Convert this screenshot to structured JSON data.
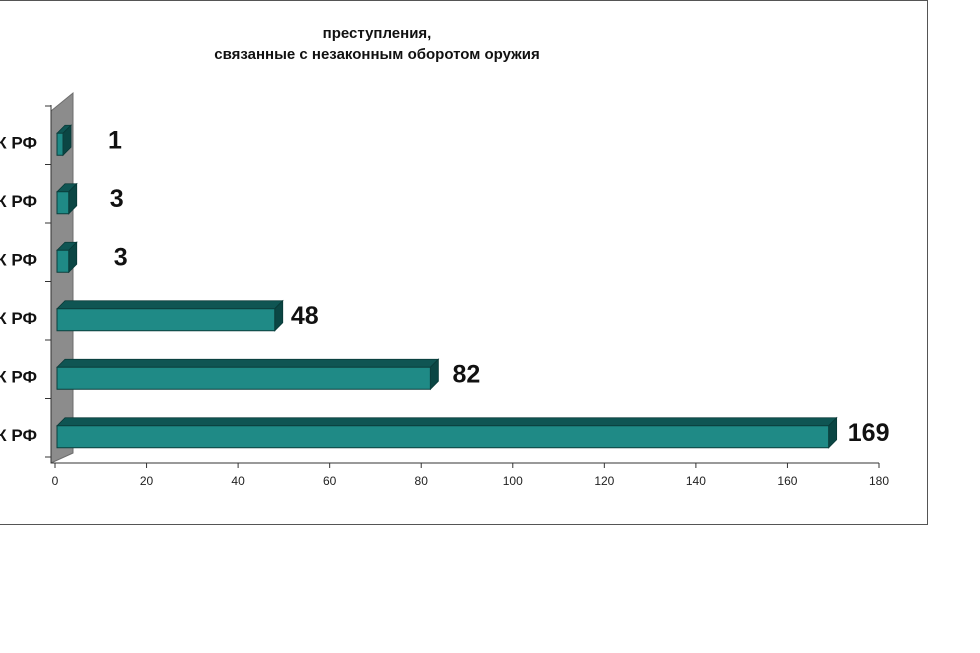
{
  "chart_data": {
    "type": "bar",
    "orientation": "horizontal",
    "style": "3d",
    "title_lines": [
      "преступления,",
      "связанные с незаконным оборотом оружия"
    ],
    "categories": [
      "К РФ",
      "К РФ",
      "К РФ",
      "К РФ",
      "К РФ",
      "К РФ"
    ],
    "values": [
      1,
      3,
      3,
      48,
      82,
      169
    ],
    "data_labels": [
      "1",
      "3",
      "3",
      "48",
      "82",
      "169"
    ],
    "xlim": [
      0,
      180
    ],
    "x_ticks": [
      0,
      20,
      40,
      60,
      80,
      100,
      120,
      140,
      160,
      180
    ],
    "xlabel": "",
    "ylabel": "",
    "grid": false,
    "legend": "none",
    "colors": {
      "bar_front": "#1f8a86",
      "bar_top": "#0f5553",
      "bar_side": "#0b4644",
      "wall": "#8c8c8c",
      "wall_edge": "#6d6d6d",
      "axis": "#333333"
    }
  }
}
